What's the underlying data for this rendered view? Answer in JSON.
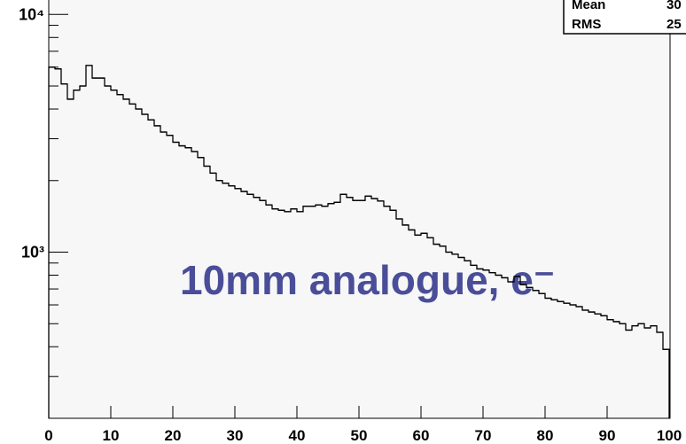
{
  "chart_data": {
    "type": "histogram",
    "annotation": "10mm analogue, e⁻",
    "stats": {
      "labels": [
        "Mean",
        "RMS"
      ],
      "values": [
        "30",
        "25"
      ]
    },
    "bins": [
      0,
      1,
      2,
      3,
      4,
      5,
      6,
      7,
      8,
      9,
      10,
      11,
      12,
      13,
      14,
      15,
      16,
      17,
      18,
      19,
      20,
      21,
      22,
      23,
      24,
      25,
      26,
      27,
      28,
      29,
      30,
      31,
      32,
      33,
      34,
      35,
      36,
      37,
      38,
      39,
      40,
      41,
      42,
      43,
      44,
      45,
      46,
      47,
      48,
      49,
      50,
      51,
      52,
      53,
      54,
      55,
      56,
      57,
      58,
      59,
      60,
      61,
      62,
      63,
      64,
      65,
      66,
      67,
      68,
      69,
      70,
      71,
      72,
      73,
      74,
      75,
      76,
      77,
      78,
      79,
      80,
      81,
      82,
      83,
      84,
      85,
      86,
      87,
      88,
      89,
      90,
      91,
      92,
      93,
      94,
      95,
      96,
      97,
      98,
      99,
      100
    ],
    "values": [
      6000,
      5900,
      5100,
      4400,
      4800,
      5000,
      6100,
      5400,
      5400,
      5000,
      4800,
      4600,
      4400,
      4200,
      4000,
      3800,
      3600,
      3400,
      3200,
      3100,
      2900,
      2800,
      2750,
      2650,
      2500,
      2300,
      2150,
      2000,
      1950,
      1900,
      1850,
      1800,
      1750,
      1700,
      1650,
      1580,
      1520,
      1500,
      1480,
      1520,
      1480,
      1560,
      1560,
      1580,
      1560,
      1600,
      1620,
      1750,
      1700,
      1650,
      1650,
      1720,
      1680,
      1640,
      1560,
      1500,
      1380,
      1300,
      1240,
      1180,
      1200,
      1150,
      1080,
      1060,
      1000,
      980,
      950,
      920,
      880,
      850,
      840,
      820,
      800,
      780,
      750,
      790,
      730,
      710,
      690,
      670,
      640,
      630,
      620,
      610,
      600,
      590,
      570,
      560,
      550,
      540,
      520,
      510,
      500,
      470,
      490,
      500,
      480,
      490,
      460,
      390
    ],
    "color": "#000000",
    "annotation_color": "#4a4e99",
    "xlim": [
      0,
      100
    ],
    "xticks": [
      0,
      10,
      20,
      30,
      40,
      50,
      60,
      70,
      80,
      90,
      100
    ],
    "ylim": [
      200,
      11500
    ],
    "log_y": true,
    "yticks": [
      {
        "value": 1000,
        "label": "10³"
      },
      {
        "value": 10000,
        "label": "10⁴"
      }
    ],
    "yminorticks": [
      200,
      300,
      400,
      500,
      600,
      700,
      800,
      900,
      2000,
      3000,
      4000,
      5000,
      6000,
      7000,
      8000,
      9000
    ]
  }
}
